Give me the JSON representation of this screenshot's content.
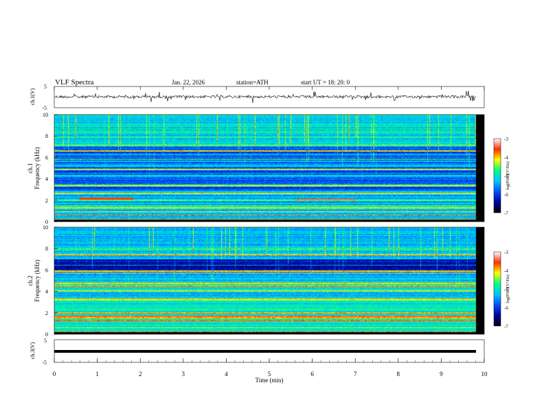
{
  "header": {
    "title": "VLF  Spectra",
    "date": "Jan. 22, 2026",
    "station": "station=ATH",
    "start": "start  UT  =   18: 20: 0"
  },
  "chart_data": {
    "type": "heatmap",
    "x_axis": {
      "label": "Time  (min)",
      "range": [
        0,
        10
      ],
      "ticks": [
        "0",
        "1",
        "2",
        "3",
        "4",
        "5",
        "6",
        "7",
        "8",
        "9",
        "10"
      ]
    },
    "panels": [
      {
        "id": "ch1-waveform",
        "type": "line",
        "ylabel": "ch.1(V)",
        "ylim": [
          -5,
          5
        ],
        "ticks": [
          "5",
          "-5"
        ]
      },
      {
        "id": "ch1-spectrogram",
        "type": "heatmap",
        "channel_label": "ch.1",
        "ylabel": "Frequency  (kHz)",
        "ylim": [
          0,
          10
        ],
        "ticks": [
          "0",
          "2",
          "4",
          "6",
          "8",
          "10"
        ]
      },
      {
        "id": "ch2-spectrogram",
        "type": "heatmap",
        "channel_label": "ch.2",
        "ylabel": "Frequency  (kHz)",
        "ylim": [
          0,
          10
        ],
        "ticks": [
          "0",
          "2",
          "4",
          "6",
          "8",
          "10"
        ]
      },
      {
        "id": "ch3-waveform",
        "type": "line",
        "ylabel": "ch.3(V)",
        "ylim": [
          -5,
          5
        ],
        "ticks": [
          "5",
          "-5"
        ]
      }
    ],
    "colorbar": {
      "label": "log(PSD)(V²/Hz)",
      "range": [
        -7,
        -3
      ],
      "ticks": [
        "-3",
        "-4",
        "-5",
        "-6",
        "-7"
      ],
      "colors": [
        "#000000",
        "#0000a0",
        "#0050ff",
        "#00c8ff",
        "#00ff80",
        "#ffff00",
        "#ff3000",
        "#ffffff"
      ]
    }
  }
}
